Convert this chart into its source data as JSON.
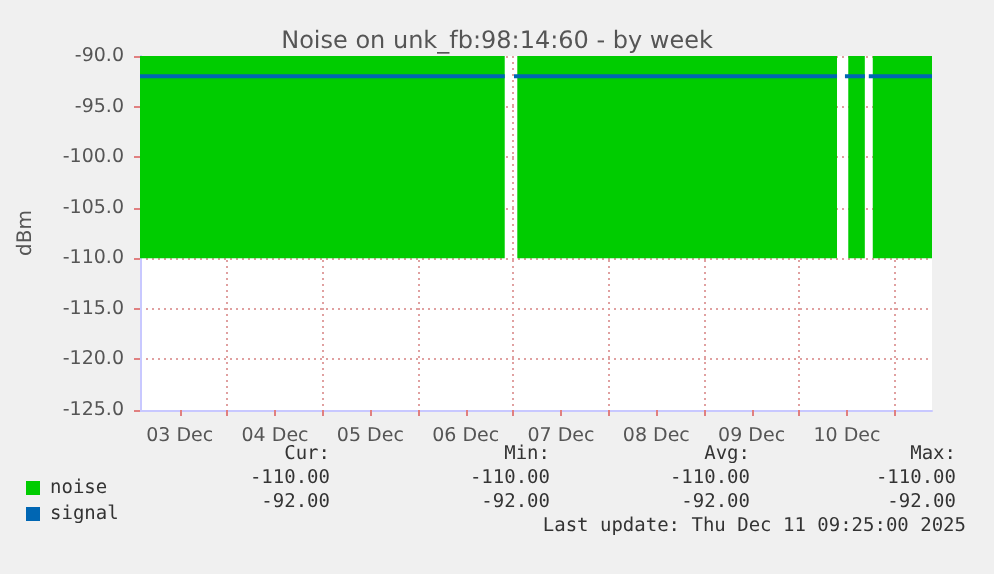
{
  "chart_data": {
    "type": "area",
    "title": "Noise on unk_fb:98:14:60 - by week",
    "ylabel": "dBm",
    "xlim": [
      "2025-12-03T02:00",
      "2025-12-11T09:25"
    ],
    "xticks": [
      {
        "value": "2025-12-03T12:00",
        "label": "03 Dec"
      },
      {
        "value": "2025-12-04T00:00",
        "label": null
      },
      {
        "value": "2025-12-04T12:00",
        "label": "04 Dec"
      },
      {
        "value": "2025-12-05T00:00",
        "label": null
      },
      {
        "value": "2025-12-05T12:00",
        "label": "05 Dec"
      },
      {
        "value": "2025-12-06T00:00",
        "label": null
      },
      {
        "value": "2025-12-06T12:00",
        "label": "06 Dec"
      },
      {
        "value": "2025-12-07T00:00",
        "label": null
      },
      {
        "value": "2025-12-07T12:00",
        "label": "07 Dec"
      },
      {
        "value": "2025-12-08T00:00",
        "label": null
      },
      {
        "value": "2025-12-08T12:00",
        "label": "08 Dec"
      },
      {
        "value": "2025-12-09T00:00",
        "label": null
      },
      {
        "value": "2025-12-09T12:00",
        "label": "09 Dec"
      },
      {
        "value": "2025-12-10T00:00",
        "label": null
      },
      {
        "value": "2025-12-10T12:00",
        "label": "10 Dec"
      },
      {
        "value": "2025-12-11T00:00",
        "label": null
      }
    ],
    "ylim": [
      -125,
      -90
    ],
    "yticks": [
      {
        "value": -125,
        "label": "-125.0"
      },
      {
        "value": -120,
        "label": "-120.0"
      },
      {
        "value": -115,
        "label": "-115.0"
      },
      {
        "value": -110,
        "label": "-110.0"
      },
      {
        "value": -105,
        "label": "-105.0"
      },
      {
        "value": -100,
        "label": "-100.0"
      },
      {
        "value": -95,
        "label": "-95.0"
      },
      {
        "value": -90,
        "label": "-90.0"
      }
    ],
    "grid": true,
    "legend": "bottom left",
    "series": [
      {
        "name": "noise",
        "color": "#00cc00",
        "x": [
          "2025-12-03T02:00",
          "2025-12-06T21:50",
          "2025-12-06T23:30",
          "2025-12-07T01:00",
          "2025-12-10T09:30",
          "2025-12-10T11:00",
          "2025-12-10T12:20",
          "2025-12-10T16:30",
          "2025-12-10T17:30",
          "2025-12-10T18:30",
          "2025-12-11T09:25"
        ],
        "values": [
          -110,
          -110,
          null,
          -110,
          -110,
          null,
          -110,
          -110,
          null,
          -110,
          -110
        ]
      },
      {
        "name": "signal",
        "type": "line",
        "color": "#0066b3",
        "x": [
          "2025-12-03T02:00",
          "2025-12-06T21:50",
          "2025-12-06T23:00",
          "2025-12-07T00:10",
          "2025-12-10T09:30",
          "2025-12-10T10:30",
          "2025-12-10T11:30",
          "2025-12-10T16:30",
          "2025-12-10T17:00",
          "2025-12-10T17:30",
          "2025-12-11T09:25"
        ],
        "values": [
          -92,
          -92,
          null,
          -92,
          -92,
          null,
          -92,
          -92,
          null,
          -92,
          -92
        ]
      }
    ],
    "annotations": [
      "Cur:",
      "Min:",
      "Avg:",
      "Max:",
      "-110.00",
      "-110.00",
      "-110.00",
      "-110.00",
      "-92.00",
      "-92.00",
      "-92.00",
      "-92.00",
      "Last update: Thu Dec 11 09:25:00 2025"
    ]
  }
}
